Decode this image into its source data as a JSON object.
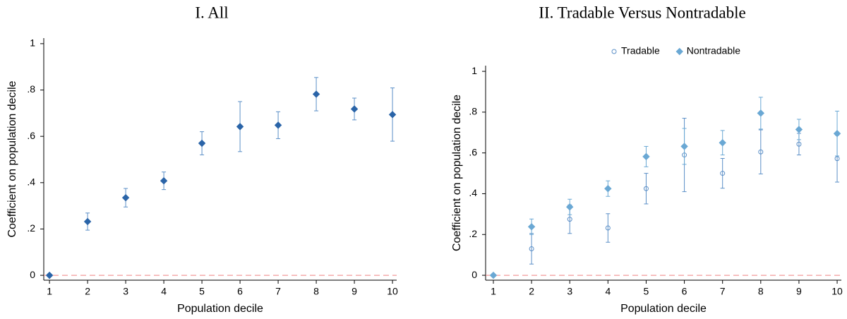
{
  "chart_data": [
    {
      "type": "errorbar",
      "title": "I. All",
      "x_label": "Population decile",
      "y_label": "Coefficient on population decile",
      "x": [
        1,
        2,
        3,
        4,
        5,
        6,
        7,
        8,
        9,
        10
      ],
      "values": [
        0,
        0.232,
        0.335,
        0.408,
        0.57,
        0.642,
        0.648,
        0.782,
        0.718,
        0.694
      ],
      "errors": [
        null,
        0.037,
        0.04,
        0.038,
        0.05,
        0.108,
        0.058,
        0.072,
        0.047,
        0.115
      ],
      "color": "#2a64a8",
      "error_color": "#5b8fc7",
      "marker": "diamond",
      "xlim": [
        0.85,
        10.11
      ],
      "xticks": [
        1,
        2,
        3,
        4,
        5,
        6,
        7,
        8,
        9,
        10
      ],
      "ylim": [
        -0.021,
        1.024
      ],
      "yticks": [
        0,
        {
          "value": 0.2,
          "label": ".2"
        },
        {
          "value": 0.4,
          "label": ".4"
        },
        {
          "value": 0.6,
          "label": ".6"
        },
        {
          "value": 0.8,
          "label": ".8"
        },
        1
      ],
      "reference_line": 0,
      "reference_color": "#f08080"
    },
    {
      "type": "errorbar",
      "title": "II. Tradable Versus Nontradable",
      "x_label": "Population decile",
      "y_label": "Coefficient on population decile",
      "x": [
        1,
        2,
        3,
        4,
        5,
        6,
        7,
        8,
        9,
        10
      ],
      "series": [
        {
          "name": "Tradable",
          "color": "#5b8fc7",
          "marker": "circle",
          "filled": false,
          "values": [
            0,
            0.13,
            0.275,
            0.232,
            0.425,
            0.59,
            0.5,
            0.605,
            0.643,
            0.572
          ],
          "errors": [
            null,
            0.075,
            0.07,
            0.07,
            0.075,
            0.18,
            0.073,
            0.108,
            0.053,
            0.115
          ]
        },
        {
          "name": "Nontradable",
          "color": "#6aa8d4",
          "marker": "diamond",
          "filled": true,
          "values": [
            0,
            0.238,
            0.335,
            0.425,
            0.582,
            0.632,
            0.65,
            0.795,
            0.715,
            0.695
          ],
          "errors": [
            null,
            0.038,
            0.038,
            0.038,
            0.05,
            0.088,
            0.06,
            0.078,
            0.05,
            0.11
          ]
        }
      ],
      "xlim": [
        0.797,
        10.11
      ],
      "xticks": [
        1,
        2,
        3,
        4,
        5,
        6,
        7,
        8,
        9,
        10
      ],
      "ylim": [
        -0.024,
        1.028
      ],
      "yticks": [
        0,
        {
          "value": 0.2,
          "label": ".2"
        },
        {
          "value": 0.4,
          "label": ".4"
        },
        {
          "value": 0.6,
          "label": ".6"
        },
        {
          "value": 0.8,
          "label": ".8"
        },
        1
      ],
      "legend": "top",
      "reference_line": 0,
      "reference_color": "#f08080"
    }
  ]
}
